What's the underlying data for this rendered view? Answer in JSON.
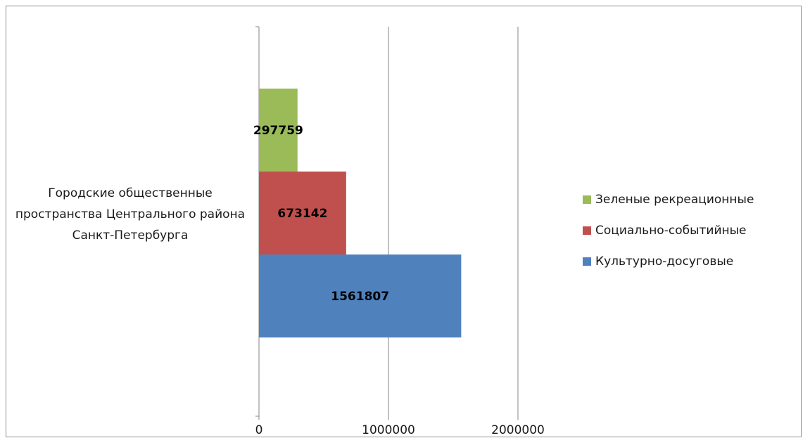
{
  "chart_data": {
    "type": "bar",
    "orientation": "horizontal",
    "stacking": "none",
    "category": "Городские общественные пространства Центрального района Санкт-Петербурга",
    "series": [
      {
        "name": "Культурно-досуговые",
        "value": 1561807,
        "label": "1561807",
        "color": "#4f81bd"
      },
      {
        "name": "Социально-событийные",
        "value": 673142,
        "label": "673142",
        "color": "#c0504d"
      },
      {
        "name": "Зеленые  рекреационные",
        "value": 297759,
        "label": "297759",
        "color": "#9bbb59"
      }
    ],
    "legend_order": [
      2,
      1,
      0
    ],
    "xlim": [
      0,
      2000000
    ],
    "xticks": [
      0,
      1000000,
      2000000
    ],
    "xtick_labels": [
      "0",
      "1000000",
      "2000000"
    ],
    "grid": "vertical",
    "legend_position": "right",
    "data_label_color": "#000000"
  }
}
